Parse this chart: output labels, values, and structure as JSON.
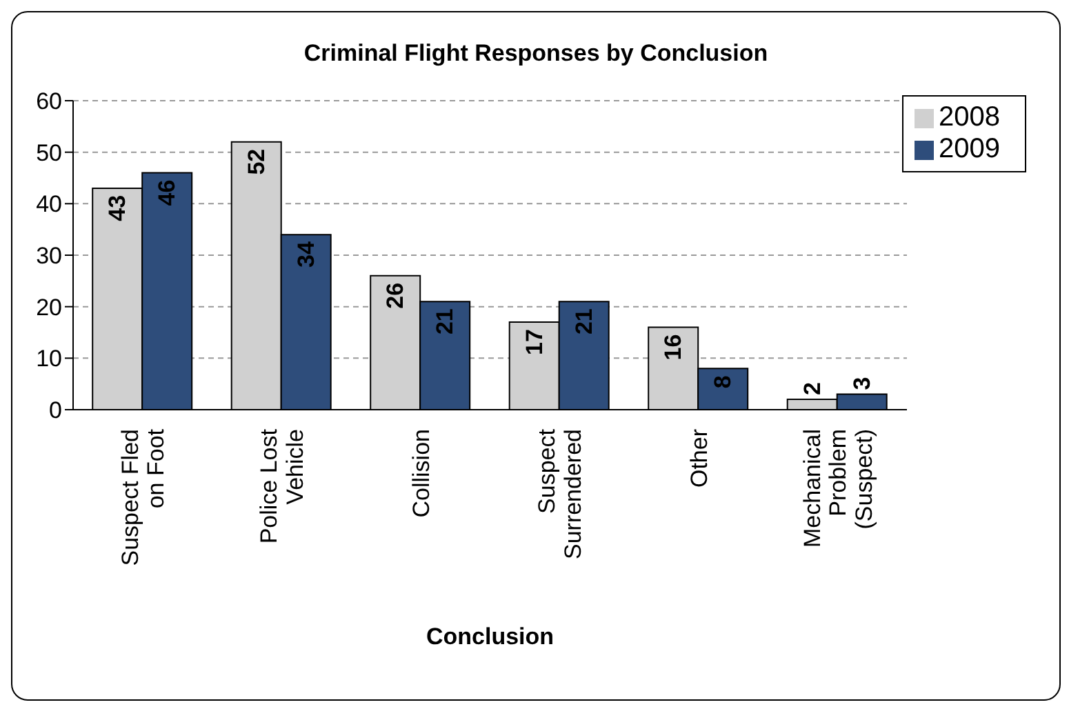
{
  "chart_data": {
    "type": "bar",
    "title": "Criminal Flight Responses by Conclusion",
    "xlabel": "Conclusion",
    "categories": [
      "Suspect Fled on Foot",
      "Police Lost Vehicle",
      "Collision",
      "Suspect Surrendered",
      "Other",
      "Mechanical Problem (Suspect)"
    ],
    "series": [
      {
        "name": "2008",
        "color": "#d0d0d0",
        "values": [
          43,
          52,
          26,
          17,
          16,
          2
        ]
      },
      {
        "name": "2009",
        "color": "#2e4d7b",
        "values": [
          46,
          34,
          21,
          21,
          8,
          3
        ]
      }
    ],
    "ylim": [
      0,
      60
    ],
    "yticks": [
      0,
      10,
      20,
      30,
      40,
      50,
      60
    ],
    "grid": "y",
    "legend": "top right",
    "data_labels": true
  }
}
